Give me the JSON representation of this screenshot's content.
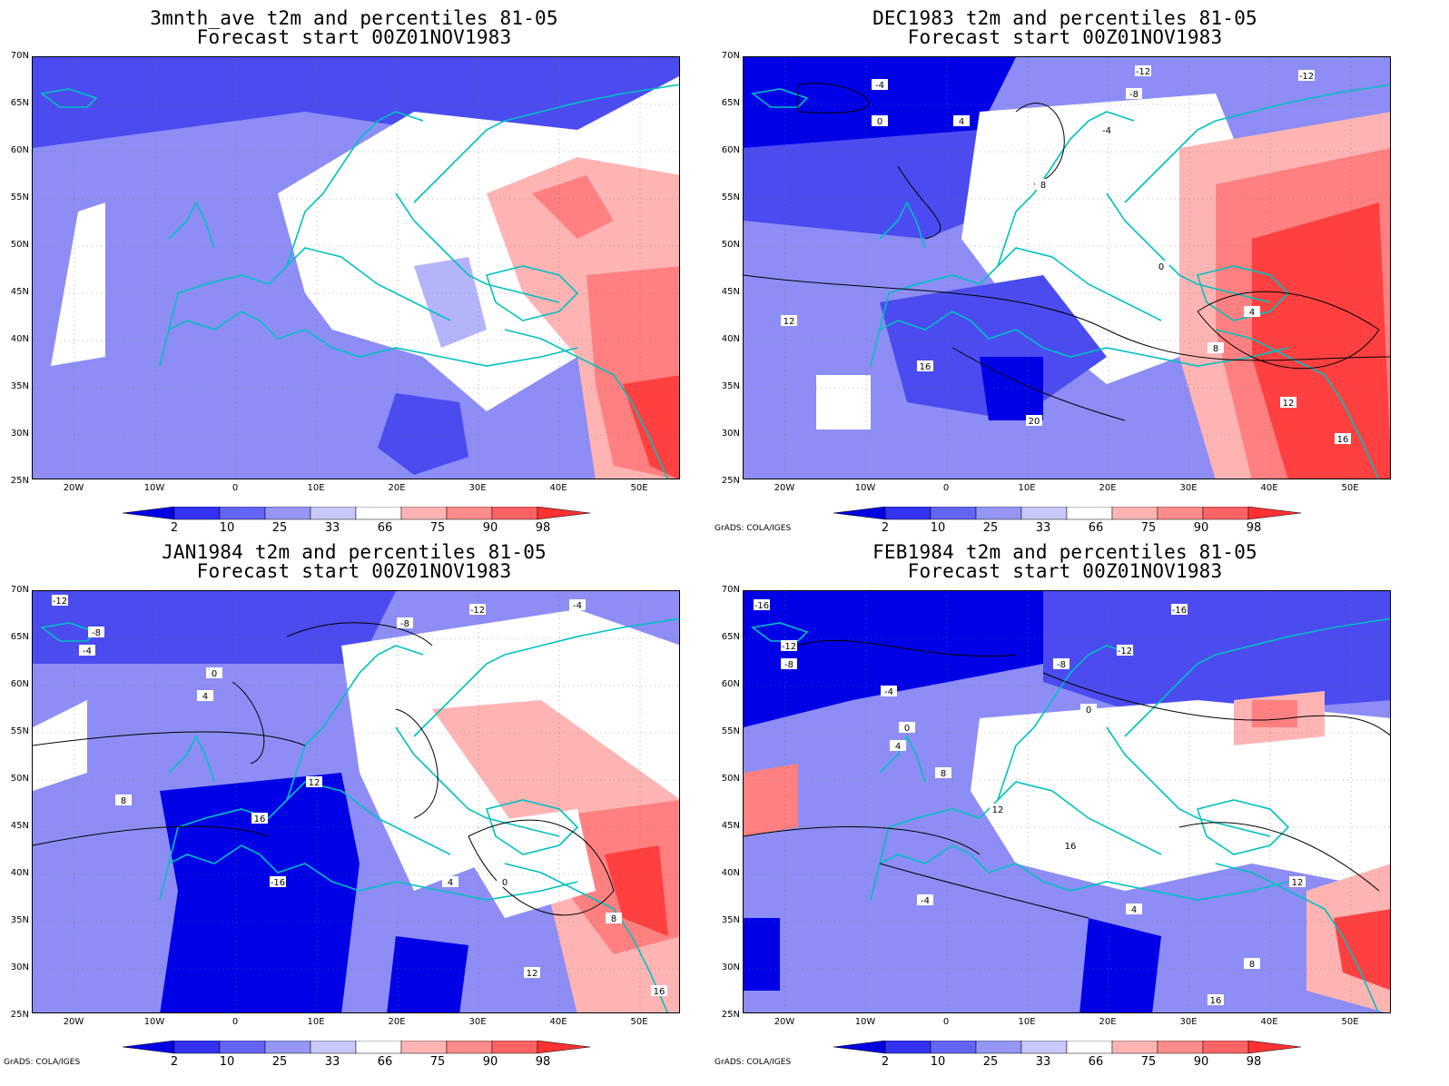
{
  "panels": [
    {
      "title_line1": "3mnth_ave t2m and percentiles 81-05",
      "title_line2": "Forecast start 00Z01NOV1983",
      "credit": "",
      "contour_labels": []
    },
    {
      "title_line1": "DEC1983 t2m and percentiles 81-05",
      "title_line2": "Forecast start 00Z01NOV1983",
      "credit": "GrADS: COLA/IGES",
      "contour_labels": [
        "-12",
        "-8",
        "-4",
        "0",
        "4",
        "8",
        "12",
        "16",
        "20",
        "-12",
        "-4",
        "0",
        "4",
        "8",
        "12",
        "16"
      ]
    },
    {
      "title_line1": "JAN1984 t2m and percentiles 81-05",
      "title_line2": "Forecast start 00Z01NOV1983",
      "credit": "GrADS: COLA/IGES",
      "contour_labels": [
        "-12",
        "-8",
        "-4",
        "0",
        "4",
        "8",
        "12",
        "16",
        "-16",
        "-12",
        "-8",
        "-4",
        "0",
        "4",
        "8",
        "12",
        "16"
      ]
    },
    {
      "title_line1": "FEB1984 t2m and percentiles 81-05",
      "title_line2": "Forecast start 00Z01NOV1983",
      "credit": "GrADS: COLA/IGES",
      "contour_labels": [
        "-16",
        "-12",
        "-8",
        "-4",
        "0",
        "4",
        "8",
        "12",
        "16",
        "-16",
        "-12",
        "-8",
        "-4",
        "0",
        "4",
        "8",
        "12",
        "16"
      ]
    }
  ],
  "lat_labels": [
    "70N",
    "65N",
    "60N",
    "55N",
    "50N",
    "45N",
    "40N",
    "35N",
    "30N",
    "25N"
  ],
  "lon_labels": [
    "20W",
    "10W",
    "0",
    "10E",
    "20E",
    "30E",
    "40E",
    "50E"
  ],
  "colorbar": {
    "labels": [
      "2",
      "10",
      "25",
      "33",
      "66",
      "75",
      "90",
      "98"
    ],
    "colors": [
      "#0000e0",
      "#3232f0",
      "#6464f5",
      "#9696f5",
      "#c8c8fa",
      "#ffffff",
      "#ffb4b4",
      "#ff8c8c",
      "#ff6464",
      "#ff3232"
    ]
  },
  "colors": {
    "coast": "#00c0c0",
    "contour": "#000000",
    "blue_dark": "#0000e6",
    "blue_mid": "#4b4bf0",
    "blue_light": "#8d8df5",
    "blue_pale": "#b4b4fa",
    "red_pale": "#ffb4b4",
    "red_mid": "#ff8080",
    "red_dark": "#ff4040"
  }
}
